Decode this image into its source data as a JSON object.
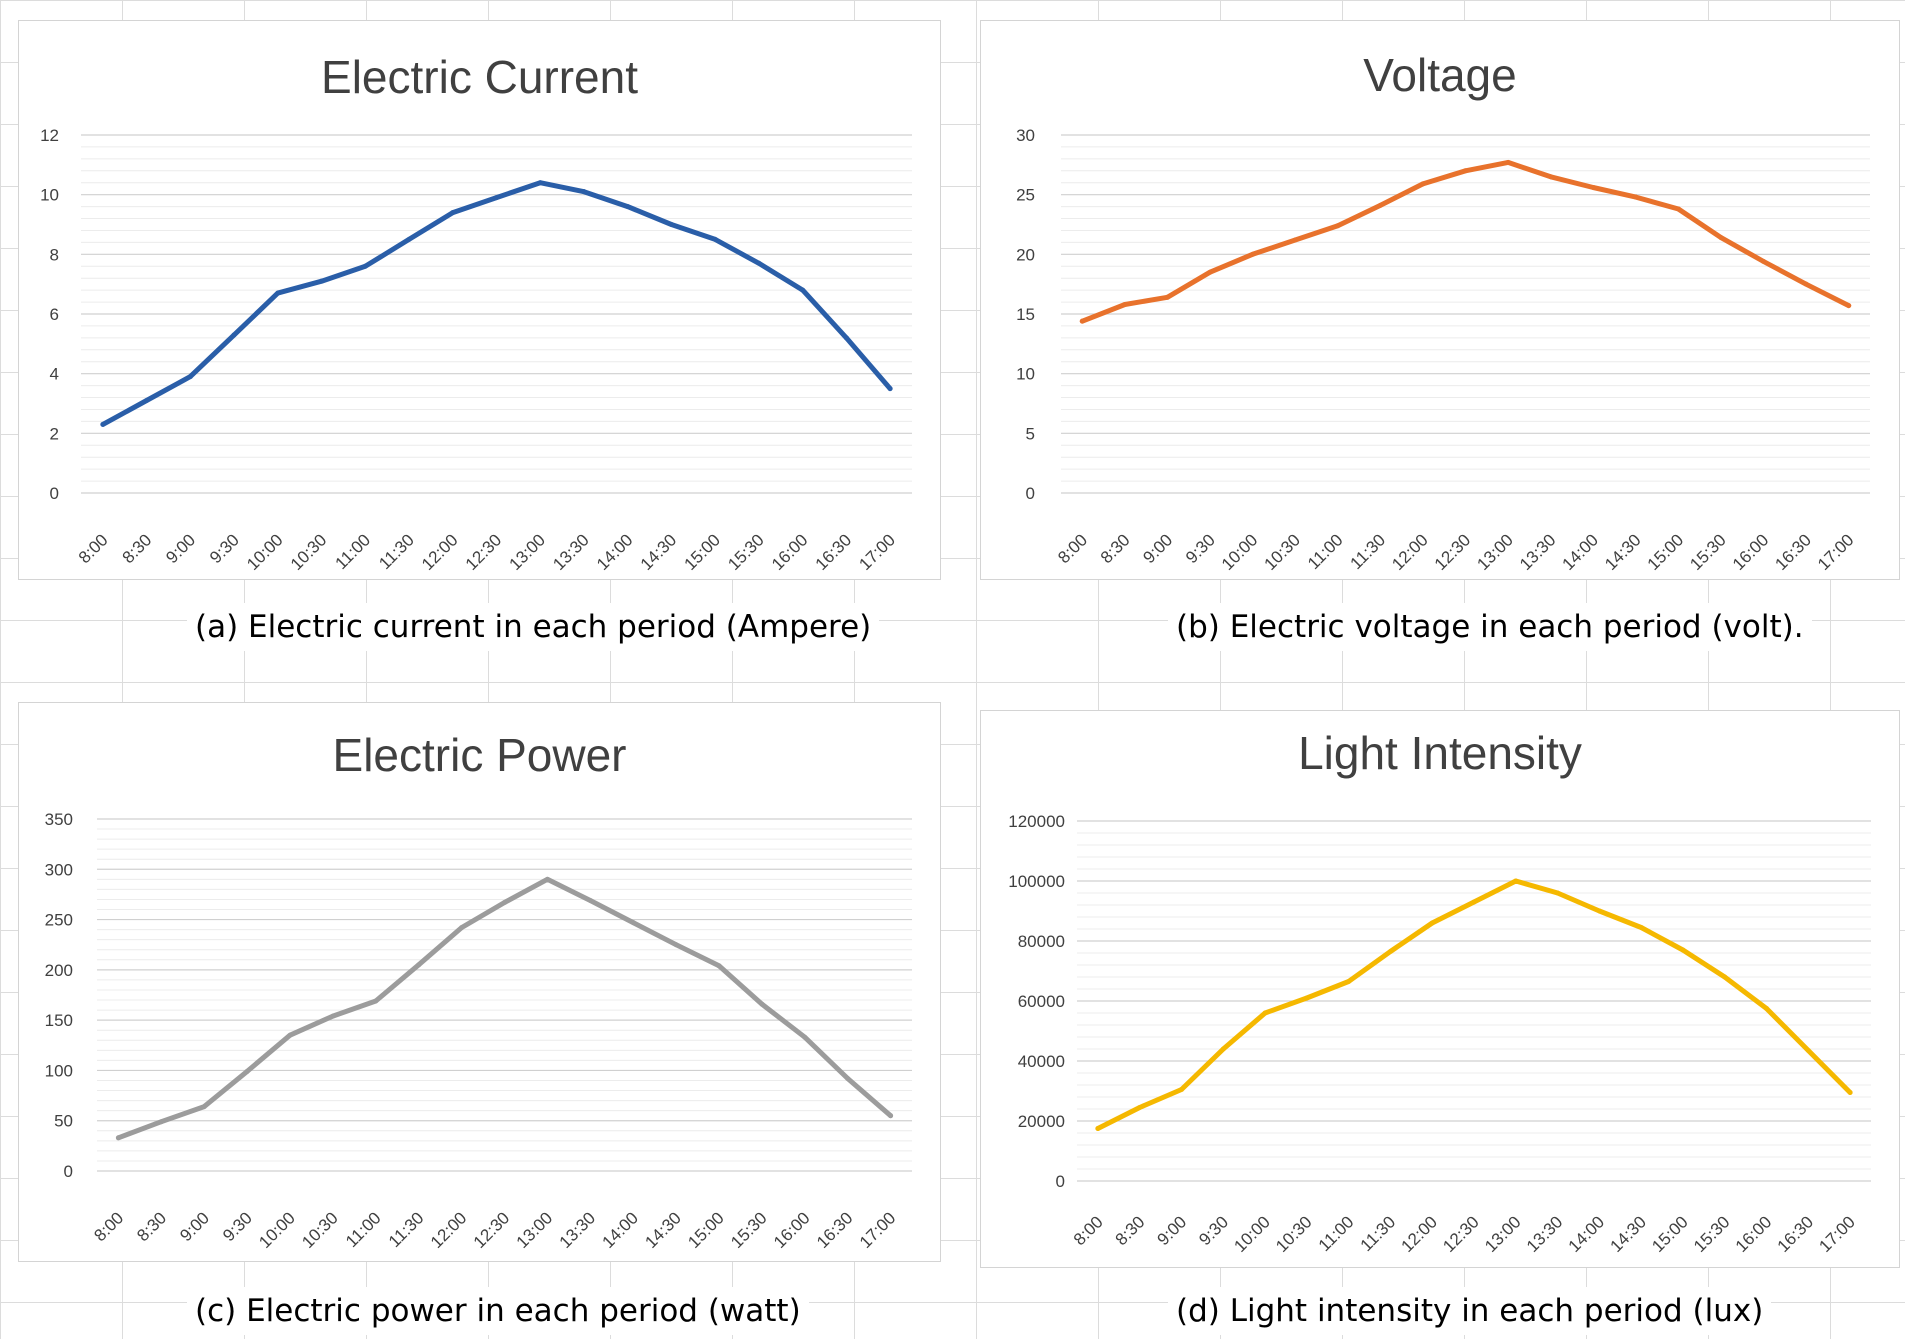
{
  "chart_data": [
    {
      "type": "line",
      "title": "Electric Current",
      "caption": "(a) Electric current in each period (Ampere)",
      "color": "#2a5ea8",
      "categories": [
        "8:00",
        "8:30",
        "9:00",
        "9:30",
        "10:00",
        "10:30",
        "11:00",
        "11:30",
        "12:00",
        "12:30",
        "13:00",
        "13:30",
        "14:00",
        "14:30",
        "15:00",
        "15:30",
        "16:00",
        "16:30",
        "17:00"
      ],
      "values": [
        2.3,
        3.1,
        3.9,
        5.3,
        6.7,
        7.1,
        7.6,
        8.5,
        9.4,
        9.9,
        10.4,
        10.1,
        9.6,
        9.0,
        8.5,
        7.7,
        6.8,
        5.2,
        3.5
      ],
      "ylim": [
        0,
        12
      ],
      "yticks": [
        "0",
        "2",
        "4",
        "6",
        "8",
        "10",
        "12"
      ],
      "xlabel": "",
      "ylabel": ""
    },
    {
      "type": "line",
      "title": "Voltage",
      "caption": "(b) Electric voltage in each period (volt).",
      "color": "#e8722c",
      "categories": [
        "8:00",
        "8:30",
        "9:00",
        "9:30",
        "10:00",
        "10:30",
        "11:00",
        "11:30",
        "12:00",
        "12:30",
        "13:00",
        "13:30",
        "14:00",
        "14:30",
        "15:00",
        "15:30",
        "16:00",
        "16:30",
        "17:00"
      ],
      "values": [
        14.4,
        15.8,
        16.4,
        18.5,
        20.0,
        21.2,
        22.4,
        24.1,
        25.9,
        27.0,
        27.7,
        26.5,
        25.6,
        24.8,
        23.8,
        21.4,
        19.4,
        17.5,
        15.7
      ],
      "ylim": [
        0,
        30
      ],
      "yticks": [
        "0",
        "5",
        "10",
        "15",
        "20",
        "25",
        "30"
      ],
      "xlabel": "",
      "ylabel": ""
    },
    {
      "type": "line",
      "title": "Electric Power",
      "caption": "(c) Electric power in each period (watt)",
      "color": "#9c9c9c",
      "categories": [
        "8:00",
        "8:30",
        "9:00",
        "9:30",
        "10:00",
        "10:30",
        "11:00",
        "11:30",
        "12:00",
        "12:30",
        "13:00",
        "13:30",
        "14:00",
        "14:30",
        "15:00",
        "15:30",
        "16:00",
        "16:30",
        "17:00"
      ],
      "values": [
        33,
        49,
        64,
        99,
        135,
        154,
        169,
        205,
        242,
        267,
        290,
        269,
        247,
        225,
        204,
        166,
        133,
        92,
        55
      ],
      "ylim": [
        0,
        350
      ],
      "yticks": [
        "0",
        "50",
        "100",
        "150",
        "200",
        "250",
        "300",
        "350"
      ],
      "xlabel": "",
      "ylabel": ""
    },
    {
      "type": "line",
      "title": "Light Intensity",
      "caption": "(d) Light intensity in each period (lux)",
      "color": "#f5b800",
      "categories": [
        "8:00",
        "8:30",
        "9:00",
        "9:30",
        "10:00",
        "10:30",
        "11:00",
        "11:30",
        "12:00",
        "12:30",
        "13:00",
        "13:30",
        "14:00",
        "14:30",
        "15:00",
        "15:30",
        "16:00",
        "16:30",
        "17:00"
      ],
      "values": [
        17500,
        24500,
        30500,
        44000,
        56000,
        61000,
        66500,
        76500,
        86000,
        93000,
        100000,
        96000,
        90000,
        84500,
        77000,
        68000,
        57500,
        43500,
        29500
      ],
      "ylim": [
        0,
        120000
      ],
      "yticks": [
        "0",
        "20000",
        "40000",
        "60000",
        "80000",
        "100000",
        "120000"
      ],
      "xlabel": "",
      "ylabel": ""
    }
  ]
}
